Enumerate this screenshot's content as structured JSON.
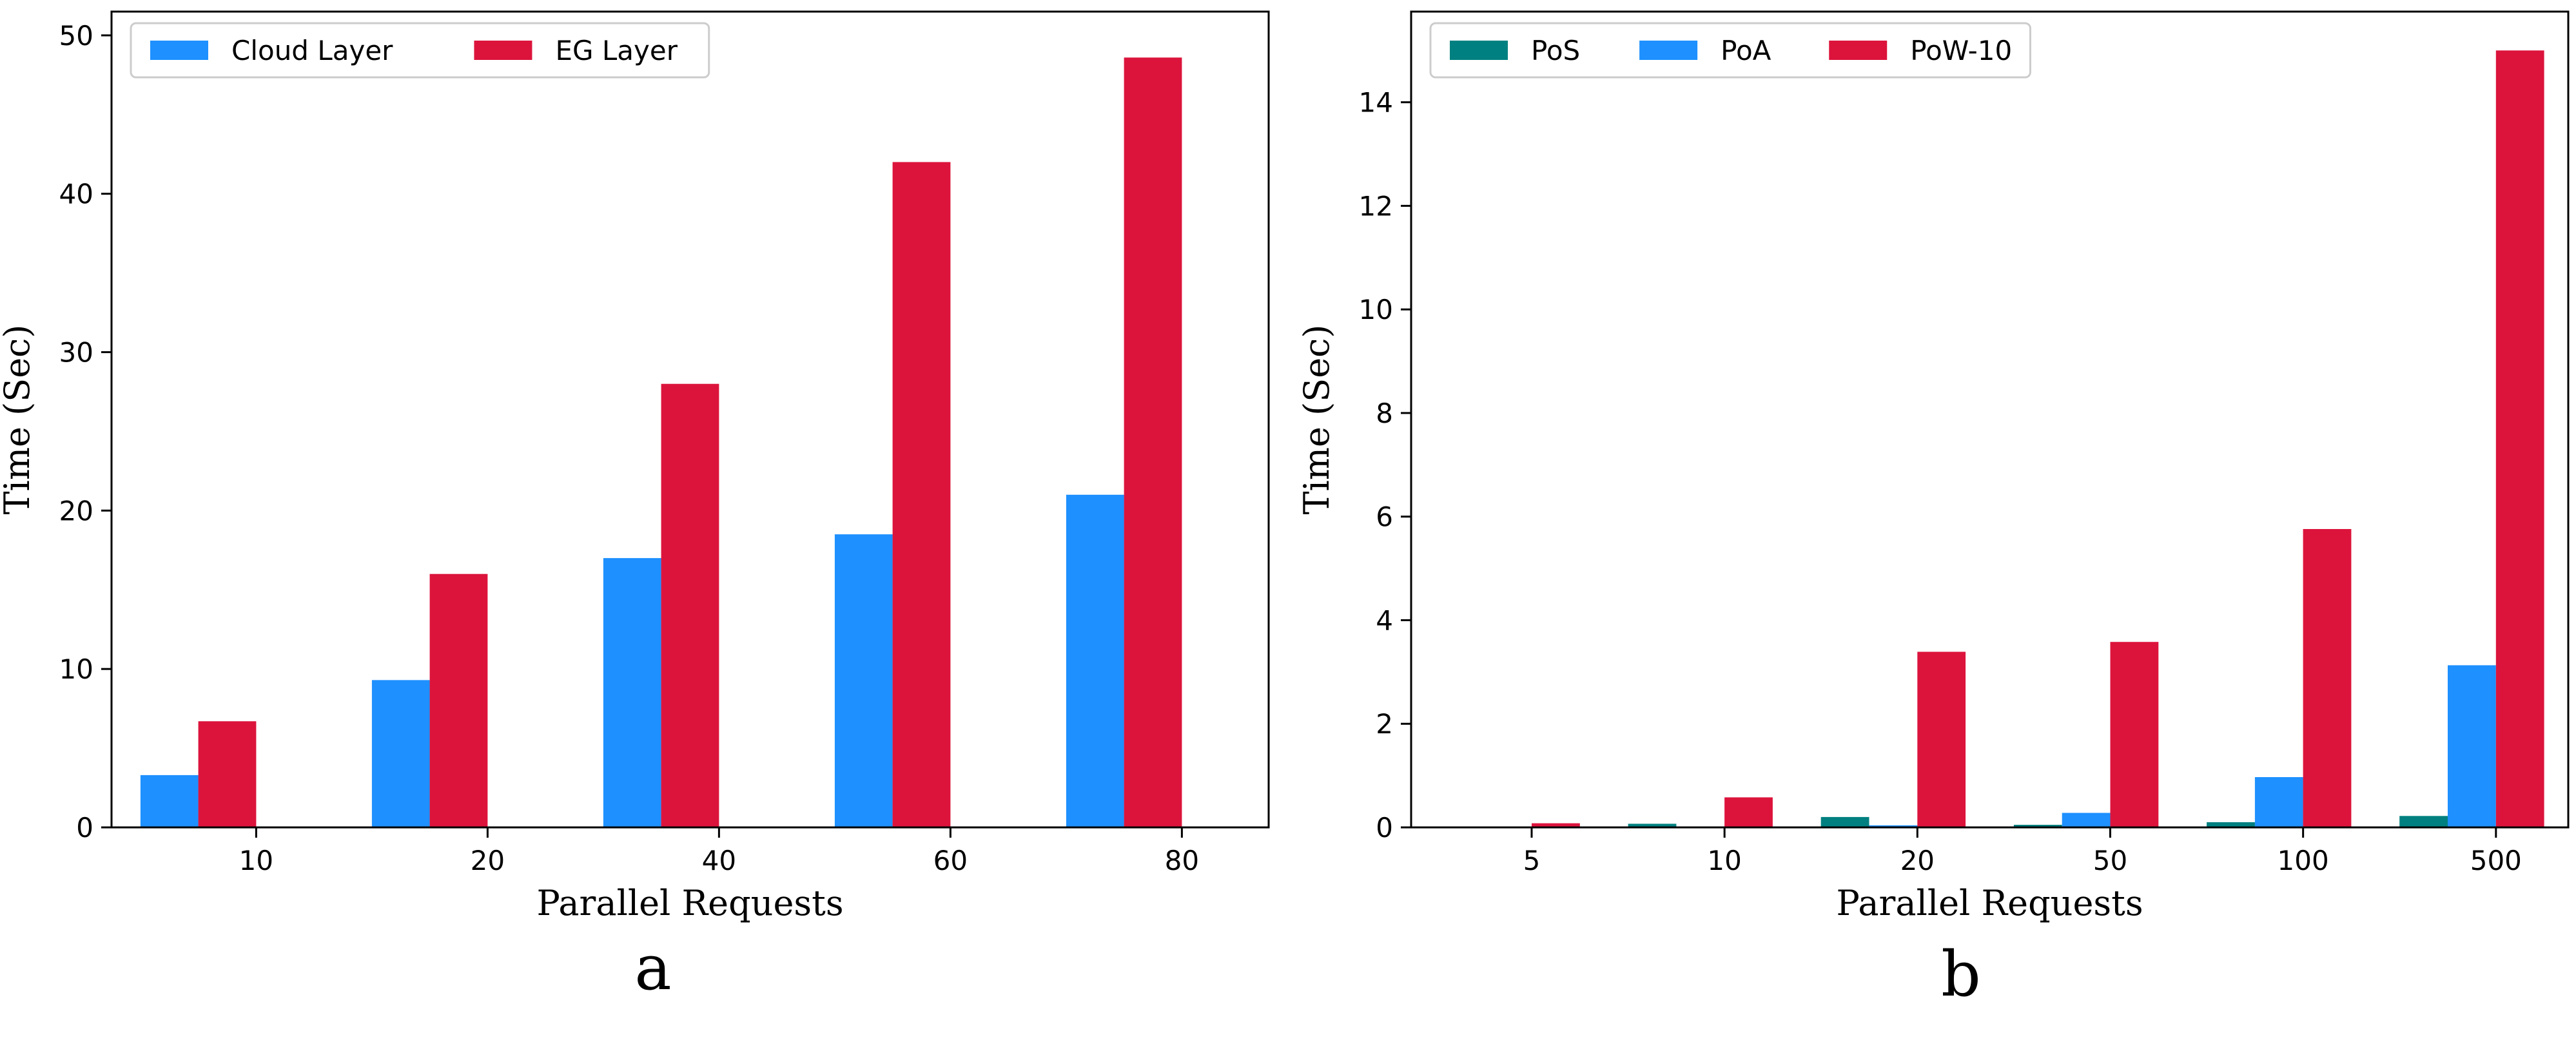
{
  "chart_data": [
    {
      "type": "bar",
      "panel_label": "a",
      "title": "",
      "xlabel": "Parallel Requests",
      "ylabel": "Time (Sec)",
      "categories": [
        "10",
        "20",
        "40",
        "60",
        "80"
      ],
      "ylim": [
        0,
        51.5
      ],
      "yticks": [
        0,
        10,
        20,
        30,
        40,
        50
      ],
      "grid": false,
      "legend_position": "top-left",
      "series": [
        {
          "name": "Cloud Layer",
          "color": "#1e90ff",
          "values": [
            3.3,
            9.3,
            17.0,
            18.5,
            21.0
          ]
        },
        {
          "name": "EG Layer",
          "color": "#dc143c",
          "values": [
            6.7,
            16.0,
            28.0,
            42.0,
            48.6
          ]
        },
        {
          "name": "",
          "color": "#ffffff",
          "values": [
            0,
            0,
            0,
            0,
            0
          ]
        }
      ]
    },
    {
      "type": "bar",
      "panel_label": "b",
      "title": "",
      "xlabel": "Parallel Requests",
      "ylabel": "Time (Sec)",
      "categories": [
        "5",
        "10",
        "20",
        "50",
        "100",
        "500"
      ],
      "ylim": [
        0,
        15.75
      ],
      "yticks": [
        0,
        2,
        4,
        6,
        8,
        10,
        12,
        14
      ],
      "grid": false,
      "legend_position": "top-left",
      "series": [
        {
          "name": "PoS",
          "color": "#008080",
          "values": [
            0.0,
            0.07,
            0.2,
            0.05,
            0.1,
            0.22
          ]
        },
        {
          "name": "PoA",
          "color": "#1e90ff",
          "values": [
            0.0,
            0.01,
            0.04,
            0.28,
            0.97,
            3.13
          ]
        },
        {
          "name": "PoW-10",
          "color": "#dc143c",
          "values": [
            0.08,
            0.58,
            3.39,
            3.58,
            5.76,
            15.0
          ]
        }
      ]
    }
  ]
}
